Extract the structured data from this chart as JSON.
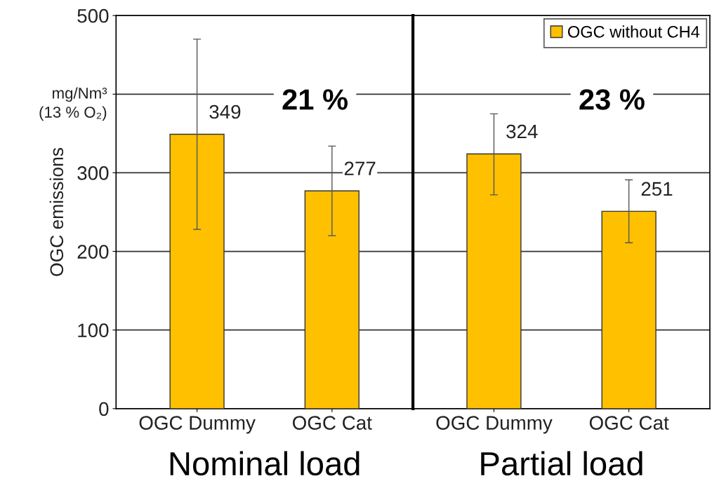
{
  "chart_data": [
    {
      "type": "bar",
      "categories": [
        "OGC Dummy",
        "OGC Cat"
      ],
      "xlabel": "Nominal load",
      "ylabel": "OGC emissions",
      "series": [
        {
          "color": "#ffc000",
          "values": [
            349,
            277
          ],
          "errors": [
            [
              228,
              470
            ],
            [
              220,
              334
            ]
          ]
        }
      ],
      "ylim": [
        0,
        500
      ],
      "yticks": [
        0,
        100,
        200,
        300,
        {
          "value": 400,
          "label": null
        },
        500
      ],
      "grid": "y",
      "data_labels": true,
      "annotations": [
        "mg/Nm³\n(13 % O₂)",
        "21 %"
      ]
    },
    {
      "type": "bar",
      "categories": [
        "OGC Dummy",
        "OGC Cat"
      ],
      "xlabel": "Partial load",
      "series": [
        {
          "name": "OGC without CH4",
          "color": "#ffc000",
          "values": [
            324,
            251
          ],
          "errors": [
            [
              272,
              375
            ],
            [
              211,
              291
            ]
          ]
        }
      ],
      "ylim": [
        0,
        500
      ],
      "yticks": [
        0,
        100,
        200,
        300,
        400,
        500
      ],
      "grid": "y",
      "data_labels": true,
      "legend": "top right",
      "tick_labels": "x",
      "annotations": [
        "23 %"
      ]
    }
  ]
}
